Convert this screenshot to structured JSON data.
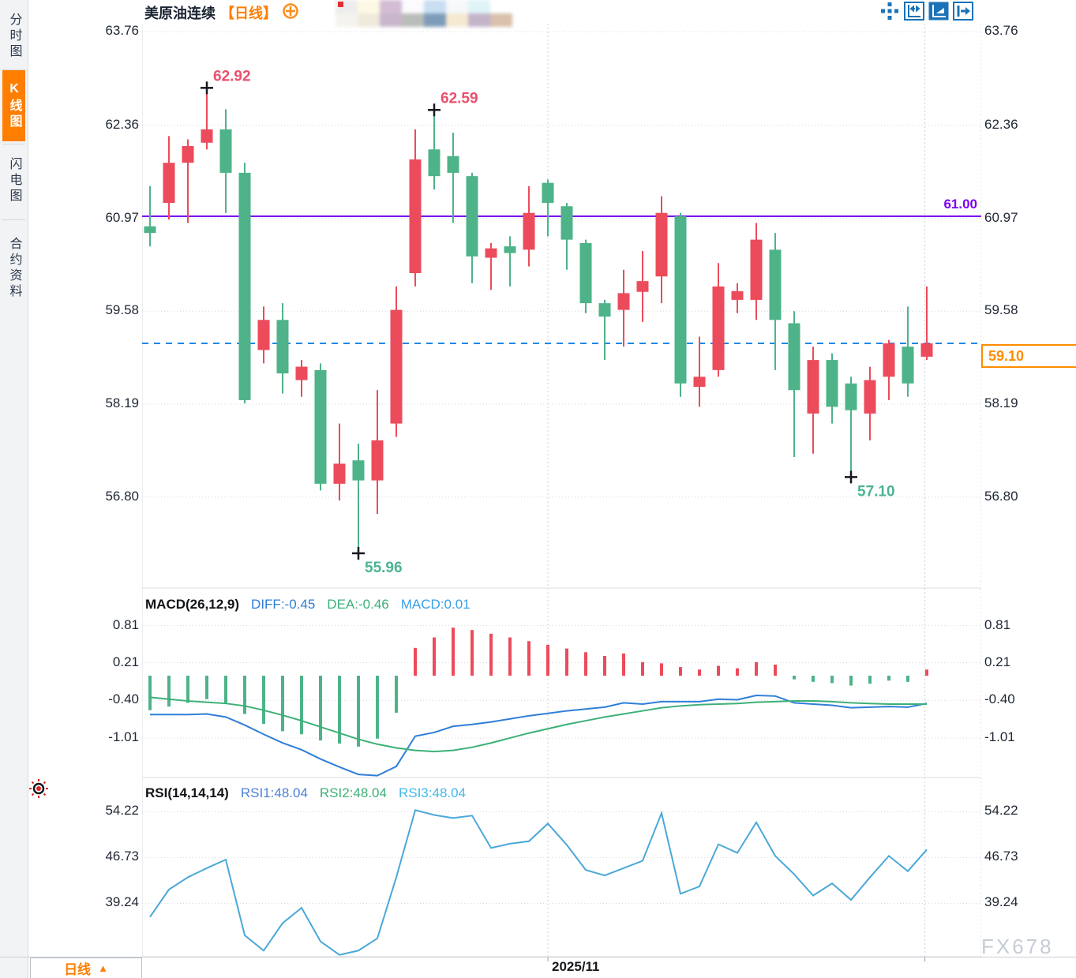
{
  "sidebar": {
    "tabs": [
      {
        "label": "分时图",
        "active": false
      },
      {
        "label": "K线图",
        "active": true
      },
      {
        "label": "闪电图",
        "active": false
      },
      {
        "label": "合约资料",
        "active": false
      }
    ]
  },
  "header": {
    "symbol": "美原油连续",
    "period_tag": "【日线】",
    "blur_colors_top": [
      "#ededed",
      "#fdf9e4",
      "#d3bcd4",
      "#fbfbfd",
      "#c8def2",
      "#f6f8fa",
      "#e0f4f8"
    ],
    "blur_colors_bottom": [
      "#f5f3ee",
      "#efeadc",
      "#c9b6cc",
      "#b9bdb9",
      "#7e9cb8",
      "#f5e9d2",
      "#c4b4ca",
      "#d8c0ac"
    ]
  },
  "toolbar": {
    "icons": [
      {
        "name": "pan-tool",
        "active": false
      },
      {
        "name": "fit-range",
        "active": false
      },
      {
        "name": "auto-scale",
        "active": true
      },
      {
        "name": "jump-to-latest",
        "active": false
      }
    ]
  },
  "bottom_bar": {
    "period_label": "日线",
    "arrow": "▲"
  },
  "watermark": "FX678",
  "colors": {
    "up": "#ec4b5b",
    "down": "#4eb388",
    "accent_orange": "#ff7e00",
    "ref_purple": "#7a00f0",
    "ref_blue": "#1e87e5",
    "icon_blue": "#1a73b8",
    "diff_line": "#2f7ed8",
    "dea_line": "#3cb077",
    "rsi_line": "#4aa8d8"
  },
  "chart_data": {
    "type": "candlestick",
    "title": "美原油连续【日线】",
    "grid": true,
    "legend_position": "none",
    "panels": [
      {
        "id": "price",
        "ylim": [
          55.44,
          63.88
        ],
        "ticks": [
          "63.76",
          "62.36",
          "60.97",
          "59.58",
          "58.19",
          "56.80"
        ],
        "ref_lines": [
          {
            "value": 61.0,
            "label": "61.00",
            "style": "solid"
          },
          {
            "value": 59.1,
            "label": "59.10",
            "style": "dashed",
            "boxed": true
          }
        ],
        "annotations": [
          {
            "candle": 3,
            "price": 62.92,
            "text": "62.92",
            "side": "high"
          },
          {
            "candle": 15,
            "price": 62.59,
            "text": "62.59",
            "side": "high"
          },
          {
            "candle": 11,
            "price": 55.96,
            "text": "55.96",
            "side": "low"
          },
          {
            "candle": 37,
            "price": 57.1,
            "text": "57.10",
            "side": "low"
          }
        ],
        "candles_ohlc": [
          [
            60.85,
            61.45,
            60.55,
            60.75
          ],
          [
            61.2,
            62.2,
            60.95,
            61.8
          ],
          [
            61.8,
            62.15,
            60.9,
            62.05
          ],
          [
            62.1,
            62.92,
            62.0,
            62.3
          ],
          [
            62.3,
            62.6,
            61.05,
            61.65
          ],
          [
            61.65,
            61.8,
            58.2,
            58.25
          ],
          [
            59.0,
            59.65,
            58.8,
            59.45
          ],
          [
            59.45,
            59.7,
            58.35,
            58.65
          ],
          [
            58.55,
            58.85,
            58.3,
            58.75
          ],
          [
            58.7,
            58.8,
            56.9,
            57.0
          ],
          [
            57.0,
            57.9,
            56.75,
            57.3
          ],
          [
            57.35,
            57.6,
            55.96,
            57.05
          ],
          [
            57.05,
            58.4,
            56.55,
            57.65
          ],
          [
            57.9,
            59.95,
            57.7,
            59.6
          ],
          [
            60.15,
            62.3,
            59.95,
            61.85
          ],
          [
            62.0,
            62.59,
            61.4,
            61.6
          ],
          [
            61.9,
            62.25,
            60.9,
            61.65
          ],
          [
            61.6,
            61.65,
            60.0,
            60.4
          ],
          [
            60.38,
            60.6,
            59.9,
            60.52
          ],
          [
            60.55,
            60.7,
            59.95,
            60.45
          ],
          [
            60.5,
            61.45,
            60.25,
            61.05
          ],
          [
            61.5,
            61.55,
            60.7,
            61.2
          ],
          [
            61.15,
            61.2,
            60.2,
            60.65
          ],
          [
            60.6,
            60.65,
            59.55,
            59.7
          ],
          [
            59.7,
            59.75,
            58.85,
            59.5
          ],
          [
            59.6,
            60.2,
            59.05,
            59.85
          ],
          [
            59.87,
            60.48,
            59.42,
            60.03
          ],
          [
            60.1,
            61.3,
            59.7,
            61.05
          ],
          [
            61.0,
            61.05,
            58.3,
            58.5
          ],
          [
            58.45,
            59.2,
            58.15,
            58.6
          ],
          [
            58.7,
            60.3,
            58.6,
            59.95
          ],
          [
            59.75,
            60.0,
            59.55,
            59.88
          ],
          [
            59.75,
            60.9,
            59.45,
            60.65
          ],
          [
            60.5,
            60.75,
            58.7,
            59.45
          ],
          [
            59.4,
            59.58,
            57.4,
            58.4
          ],
          [
            58.05,
            59.05,
            57.45,
            58.85
          ],
          [
            58.85,
            58.95,
            57.9,
            58.15
          ],
          [
            58.5,
            58.6,
            57.1,
            58.1
          ],
          [
            58.05,
            58.75,
            57.65,
            58.55
          ],
          [
            58.6,
            59.15,
            58.25,
            59.1
          ],
          [
            59.05,
            59.65,
            58.3,
            58.5
          ],
          [
            58.9,
            59.95,
            58.85,
            59.1
          ]
        ]
      },
      {
        "id": "macd",
        "title": "MACD(26,12,9)",
        "readouts": [
          {
            "text": "DIFF:-0.45",
            "color": "#2f7ed8"
          },
          {
            "text": "DEA:-0.46",
            "color": "#3cb077"
          },
          {
            "text": "MACD:0.01",
            "color": "#3aa0e8"
          }
        ],
        "ylim": [
          -1.65,
          1.42
        ],
        "ticks": [
          "0.81",
          "0.21",
          "-0.40",
          "-1.01"
        ],
        "histogram": [
          -0.56,
          -0.5,
          -0.44,
          -0.38,
          -0.44,
          -0.62,
          -0.78,
          -0.9,
          -0.95,
          -1.05,
          -1.1,
          -1.15,
          -1.02,
          -0.6,
          0.45,
          0.62,
          0.78,
          0.74,
          0.68,
          0.62,
          0.56,
          0.5,
          0.44,
          0.38,
          0.32,
          0.36,
          0.22,
          0.2,
          0.14,
          0.1,
          0.16,
          0.12,
          0.22,
          0.18,
          -0.06,
          -0.1,
          -0.12,
          -0.16,
          -0.13,
          -0.08,
          -0.1,
          0.1
        ],
        "diff": [
          -0.63,
          -0.63,
          -0.63,
          -0.62,
          -0.67,
          -0.8,
          -0.95,
          -1.09,
          -1.2,
          -1.35,
          -1.48,
          -1.6,
          -1.62,
          -1.47,
          -0.98,
          -0.92,
          -0.82,
          -0.79,
          -0.75,
          -0.7,
          -0.65,
          -0.61,
          -0.57,
          -0.54,
          -0.51,
          -0.44,
          -0.46,
          -0.42,
          -0.42,
          -0.42,
          -0.38,
          -0.39,
          -0.32,
          -0.33,
          -0.44,
          -0.46,
          -0.48,
          -0.52,
          -0.51,
          -0.5,
          -0.51,
          -0.45
        ],
        "dea": [
          -0.35,
          -0.38,
          -0.41,
          -0.43,
          -0.45,
          -0.49,
          -0.56,
          -0.64,
          -0.73,
          -0.83,
          -0.93,
          -1.03,
          -1.11,
          -1.17,
          -1.21,
          -1.23,
          -1.21,
          -1.16,
          -1.09,
          -1.01,
          -0.93,
          -0.86,
          -0.79,
          -0.73,
          -0.67,
          -0.62,
          -0.57,
          -0.52,
          -0.49,
          -0.47,
          -0.46,
          -0.45,
          -0.43,
          -0.42,
          -0.41,
          -0.41,
          -0.42,
          -0.44,
          -0.45,
          -0.46,
          -0.46,
          -0.46
        ]
      },
      {
        "id": "rsi",
        "title": "RSI(14,14,14)",
        "readouts": [
          {
            "text": "RSI1:48.04",
            "color": "#4f81d8"
          },
          {
            "text": "RSI2:48.04",
            "color": "#3cb077"
          },
          {
            "text": "RSI3:48.04",
            "color": "#45b8e8"
          }
        ],
        "ylim": [
          30.5,
          59.84
        ],
        "ticks": [
          "54.22",
          "46.73",
          "39.24"
        ],
        "values": [
          37.0,
          41.5,
          43.5,
          45.0,
          46.4,
          34.0,
          31.5,
          36.0,
          38.5,
          33.0,
          30.8,
          31.5,
          33.5,
          43.5,
          54.5,
          53.7,
          53.2,
          53.6,
          48.3,
          49.0,
          49.4,
          52.3,
          48.8,
          44.7,
          43.8,
          45.0,
          46.2,
          54.0,
          40.8,
          42.0,
          48.9,
          47.5,
          52.5,
          47.0,
          44.0,
          40.5,
          42.5,
          39.8,
          43.5,
          47.0,
          44.5,
          48.04
        ]
      }
    ],
    "x_axis": {
      "month_gridlines": [
        21,
        40.9
      ],
      "labels": [
        {
          "text": "2025/11",
          "at": 21
        }
      ]
    }
  }
}
